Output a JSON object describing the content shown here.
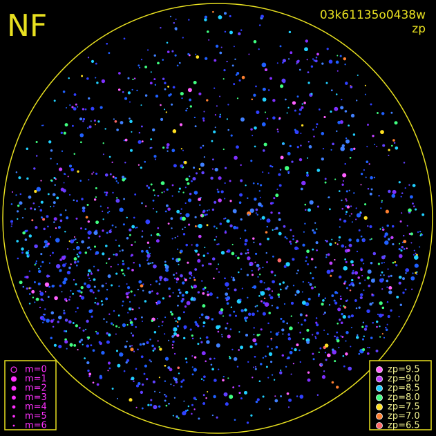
{
  "title": "NF",
  "image_id": "03k61135o0438w",
  "mode": "zp",
  "magnitude_legend": [
    "m=0",
    "m=1",
    "m=2",
    "m=3",
    "m=4",
    "m=5",
    "m=6"
  ],
  "zp_legend": [
    {
      "label": "zp=9.5",
      "color": "#ff60ff"
    },
    {
      "label": "zp=9.0",
      "color": "#c040ff"
    },
    {
      "label": "zp=8.5",
      "color": "#20d0ff"
    },
    {
      "label": "zp=8.0",
      "color": "#40ff80"
    },
    {
      "label": "zp=7.5",
      "color": "#ffe020"
    },
    {
      "label": "zp=7.0",
      "color": "#ff8030"
    },
    {
      "label": "zp=6.5",
      "color": "#ff6868"
    }
  ]
}
